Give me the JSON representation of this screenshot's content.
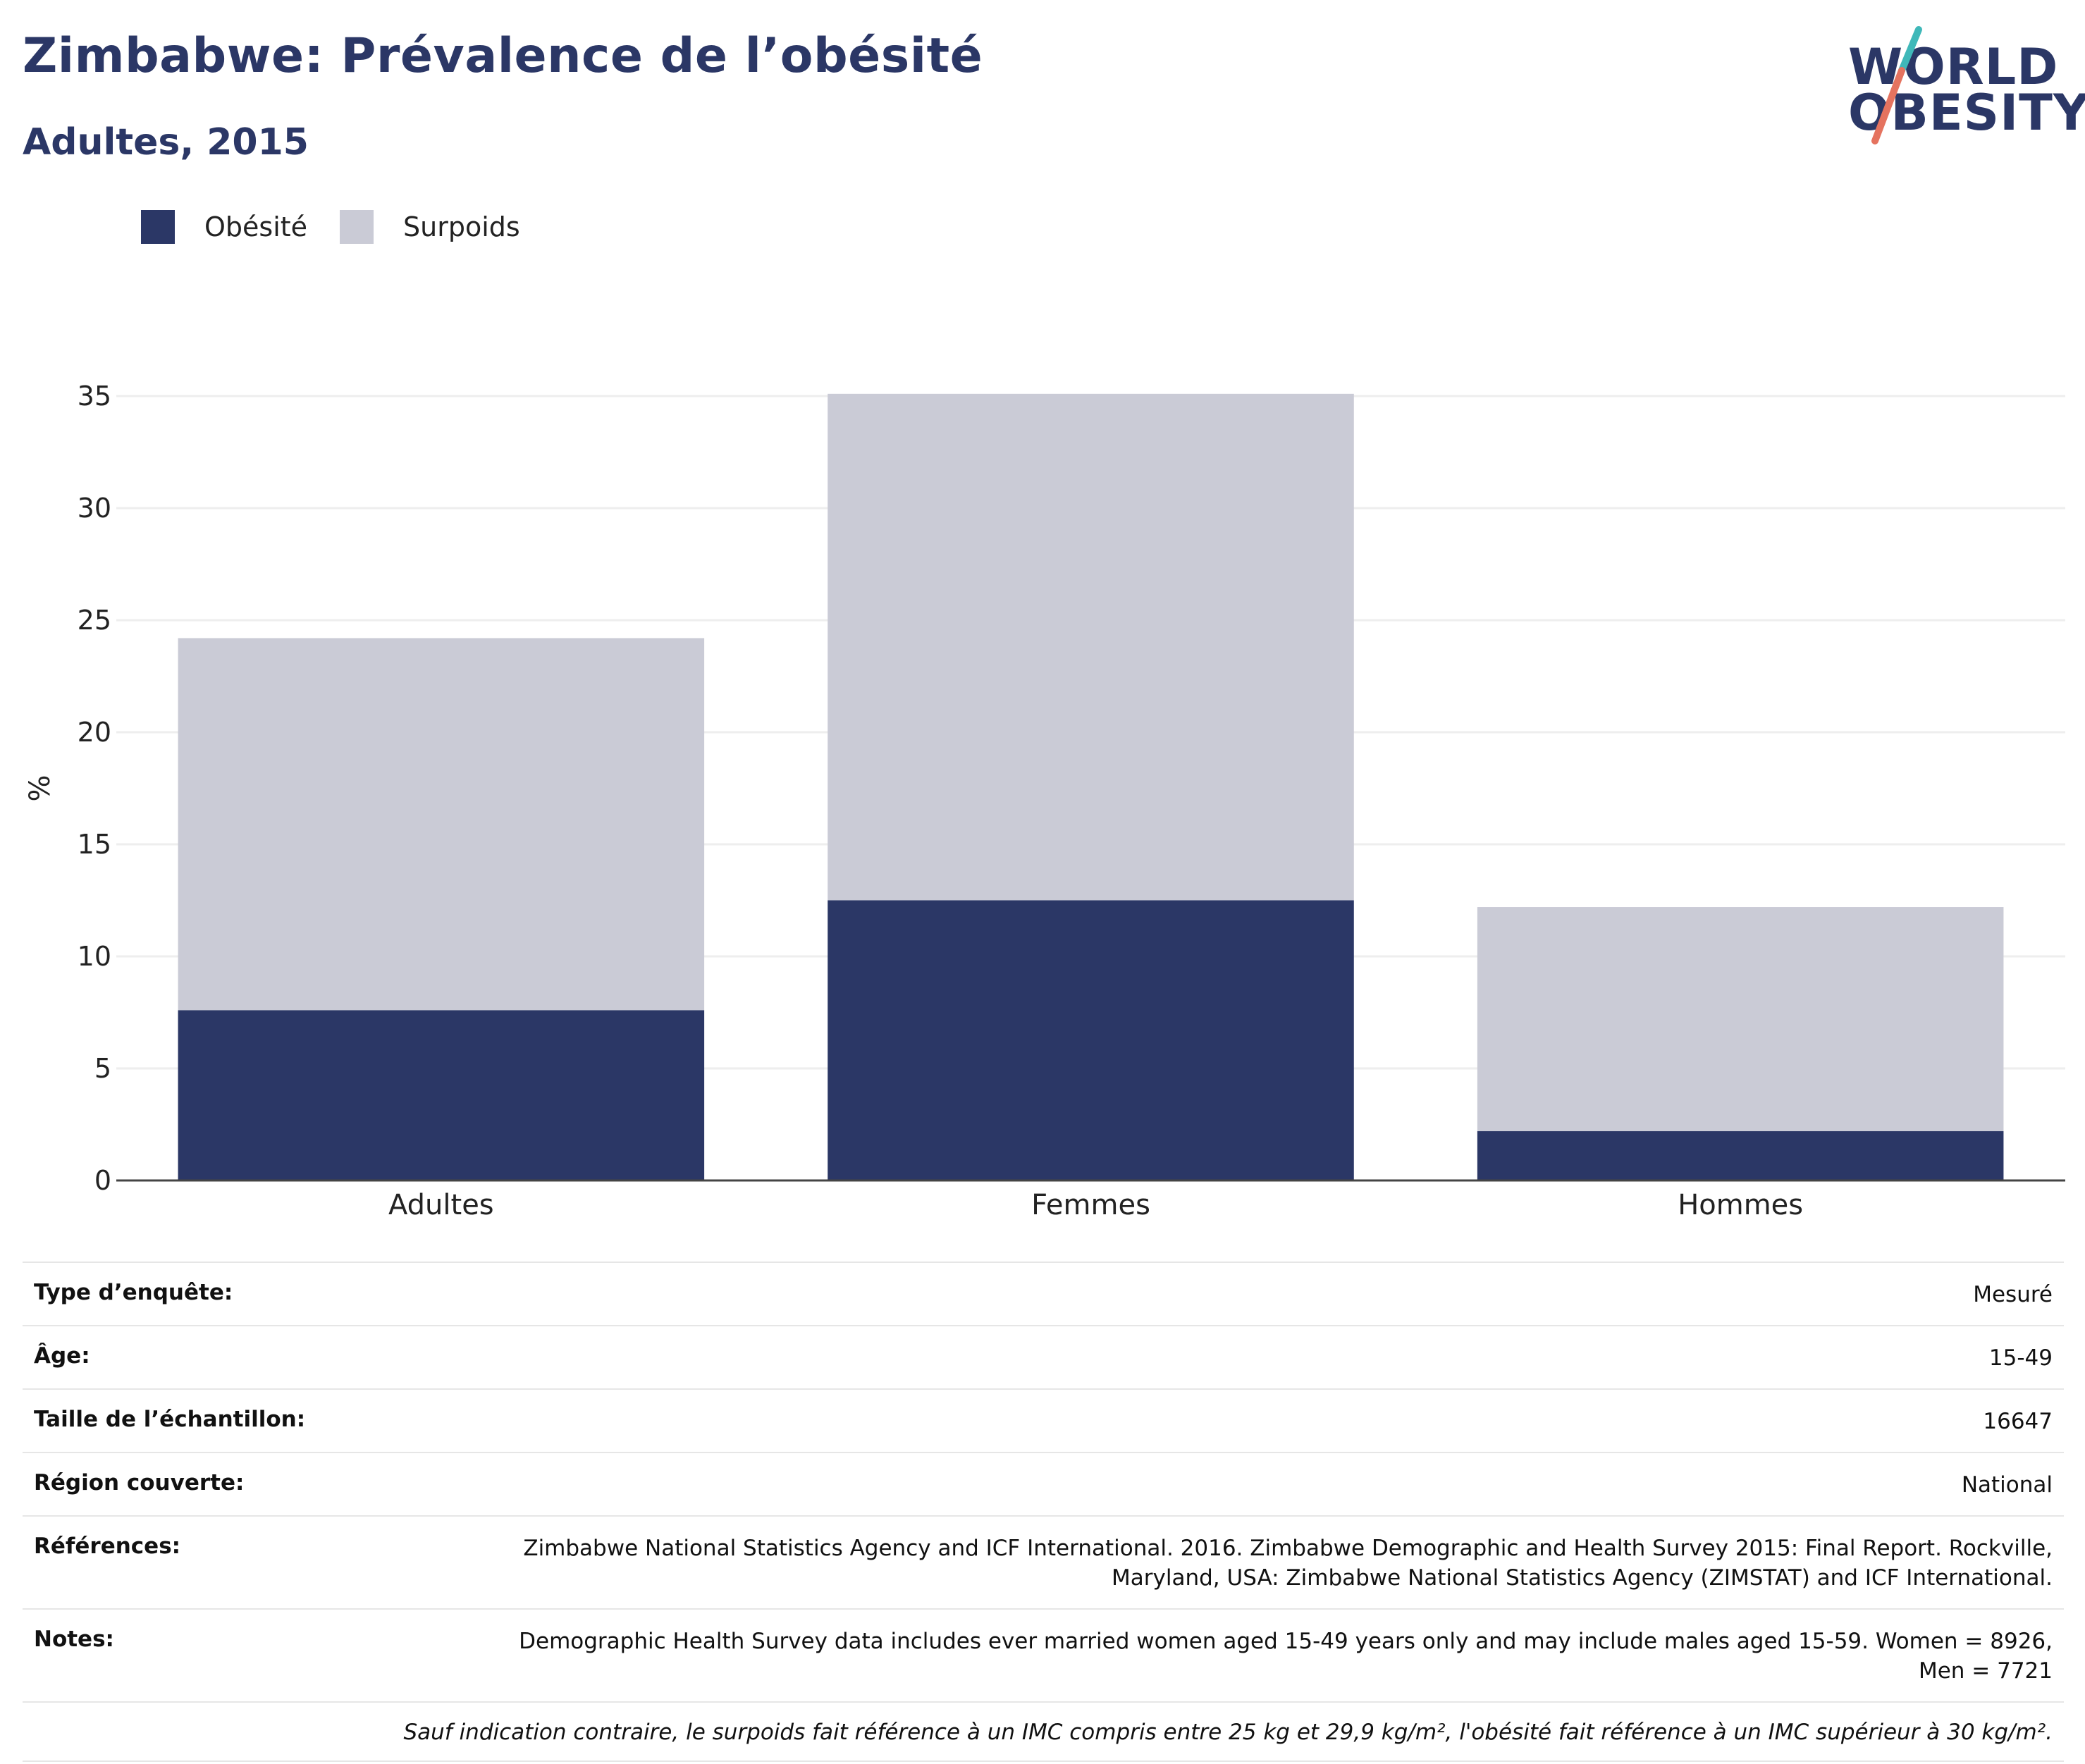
{
  "title": "Zimbabwe: Prévalence de l’obésité",
  "subtitle": "Adultes, 2015",
  "logo": {
    "line1": "WORLD",
    "line2": "OBESITY"
  },
  "colors": {
    "obesity": "#2b3766",
    "overweight": "#cacbd6",
    "title": "#2b3766",
    "logo_teal": "#3fb8b9",
    "logo_coral": "#e5735f",
    "grid": "#eeeeee",
    "axis": "#444444"
  },
  "legend": [
    {
      "label": "Obésité",
      "color": "#2b3766"
    },
    {
      "label": "Surpoids",
      "color": "#cacbd6"
    }
  ],
  "chart_data": {
    "type": "bar",
    "stacked": true,
    "categories": [
      "Adultes",
      "Femmes",
      "Hommes"
    ],
    "series": [
      {
        "name": "Obésité",
        "values": [
          7.6,
          12.5,
          2.2
        ],
        "color": "#2b3766"
      },
      {
        "name": "Surpoids",
        "values": [
          16.6,
          22.6,
          10.0
        ],
        "color": "#cacbd6"
      }
    ],
    "ylabel": "%",
    "ylim": [
      0,
      35
    ],
    "yticks": [
      0,
      5,
      10,
      15,
      20,
      25,
      30,
      35
    ],
    "grid": true,
    "legend_position": "top-left"
  },
  "meta": [
    {
      "key": "Type d’enquête:",
      "value": "Mesuré"
    },
    {
      "key": "Âge:",
      "value": "15-49"
    },
    {
      "key": "Taille de l’échantillon:",
      "value": "16647"
    },
    {
      "key": "Région couverte:",
      "value": "National"
    },
    {
      "key": "Références:",
      "value": "Zimbabwe National Statistics Agency and ICF International. 2016. Zimbabwe Demographic and Health Survey 2015: Final Report. Rockville, Maryland, USA: Zimbabwe National Statistics Agency (ZIMSTAT) and ICF International."
    },
    {
      "key": "Notes:",
      "value": "Demographic Health Survey data includes ever married women aged 15-49 years only and may include males aged 15-59. Women = 8926, Men = 7721"
    }
  ],
  "footnote": "Sauf indication contraire, le surpoids fait référence à un IMC compris entre 25 kg et 29,9 kg/m², l'obésité fait référence à un IMC supérieur à 30 kg/m²."
}
